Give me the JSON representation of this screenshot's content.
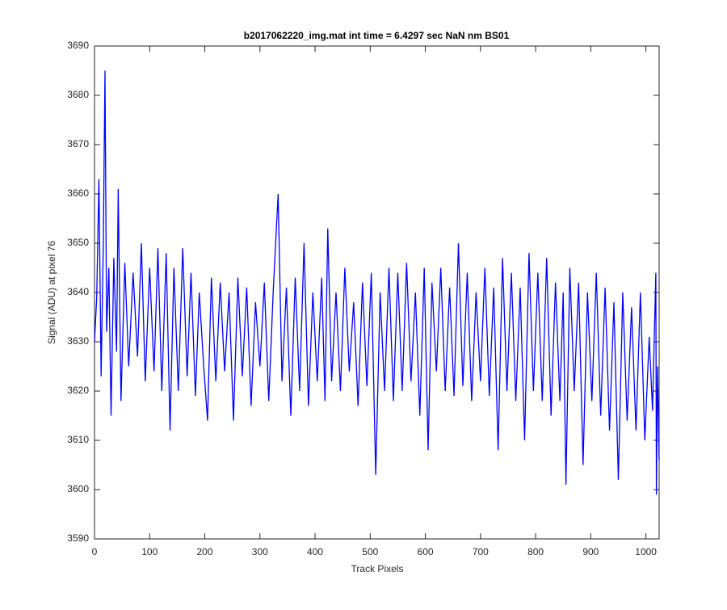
{
  "chart_data": {
    "type": "line",
    "title": "b2017062220_img.mat int time = 6.4297 sec  NaN nm BS01",
    "xlabel": "Track Pixels",
    "ylabel": "Signal (ADU) at pixel 76",
    "xlim": [
      0,
      1024
    ],
    "ylim": [
      3590,
      3690
    ],
    "xticks": [
      0,
      100,
      200,
      300,
      400,
      500,
      600,
      700,
      800,
      900,
      1000
    ],
    "yticks": [
      3590,
      3600,
      3610,
      3620,
      3630,
      3640,
      3650,
      3660,
      3670,
      3680,
      3690
    ],
    "x": [
      0,
      4,
      8,
      12,
      16,
      19,
      22,
      26,
      30,
      35,
      40,
      43,
      48,
      55,
      62,
      70,
      78,
      85,
      92,
      100,
      108,
      115,
      122,
      130,
      137,
      144,
      152,
      160,
      168,
      175,
      183,
      190,
      198,
      205,
      212,
      220,
      228,
      236,
      244,
      252,
      260,
      268,
      276,
      284,
      292,
      300,
      308,
      316,
      324,
      333,
      340,
      348,
      356,
      364,
      372,
      380,
      388,
      396,
      404,
      412,
      418,
      423,
      430,
      438,
      446,
      454,
      462,
      470,
      478,
      486,
      494,
      502,
      510,
      518,
      526,
      534,
      542,
      550,
      558,
      566,
      574,
      582,
      590,
      598,
      605,
      612,
      620,
      628,
      636,
      644,
      652,
      660,
      668,
      676,
      684,
      692,
      700,
      708,
      716,
      724,
      732,
      740,
      748,
      756,
      764,
      772,
      780,
      788,
      796,
      804,
      812,
      820,
      828,
      836,
      844,
      850,
      855,
      862,
      870,
      878,
      886,
      894,
      902,
      910,
      918,
      926,
      934,
      942,
      950,
      958,
      966,
      974,
      982,
      990,
      998,
      1006,
      1012,
      1018,
      1019,
      1021,
      1024
    ],
    "series": [
      {
        "color": "#0000ff",
        "values": [
          3630,
          3639,
          3663,
          3623,
          3650,
          3685,
          3632,
          3645,
          3615,
          3647,
          3628,
          3661,
          3618,
          3646,
          3625,
          3644,
          3627,
          3650,
          3622,
          3645,
          3624,
          3649,
          3620,
          3648,
          3612,
          3645,
          3620,
          3649,
          3623,
          3644,
          3619,
          3640,
          3625,
          3614,
          3643,
          3622,
          3642,
          3624,
          3640,
          3614,
          3643,
          3623,
          3641,
          3617,
          3638,
          3625,
          3642,
          3618,
          3640,
          3660,
          3622,
          3641,
          3615,
          3643,
          3620,
          3650,
          3617,
          3640,
          3622,
          3643,
          3618,
          3653,
          3622,
          3640,
          3620,
          3645,
          3624,
          3638,
          3617,
          3642,
          3621,
          3644,
          3603,
          3640,
          3620,
          3645,
          3618,
          3644,
          3620,
          3646,
          3622,
          3640,
          3615,
          3645,
          3608,
          3642,
          3624,
          3645,
          3620,
          3641,
          3619,
          3650,
          3621,
          3644,
          3618,
          3640,
          3622,
          3645,
          3619,
          3641,
          3608,
          3647,
          3620,
          3644,
          3618,
          3641,
          3610,
          3648,
          3620,
          3644,
          3618,
          3647,
          3615,
          3642,
          3618,
          3640,
          3601,
          3645,
          3620,
          3642,
          3605,
          3640,
          3618,
          3644,
          3615,
          3641,
          3612,
          3638,
          3602,
          3640,
          3614,
          3637,
          3612,
          3640,
          3610,
          3631,
          3616,
          3644,
          3599,
          3625,
          3606
        ]
      }
    ],
    "grid": false
  }
}
